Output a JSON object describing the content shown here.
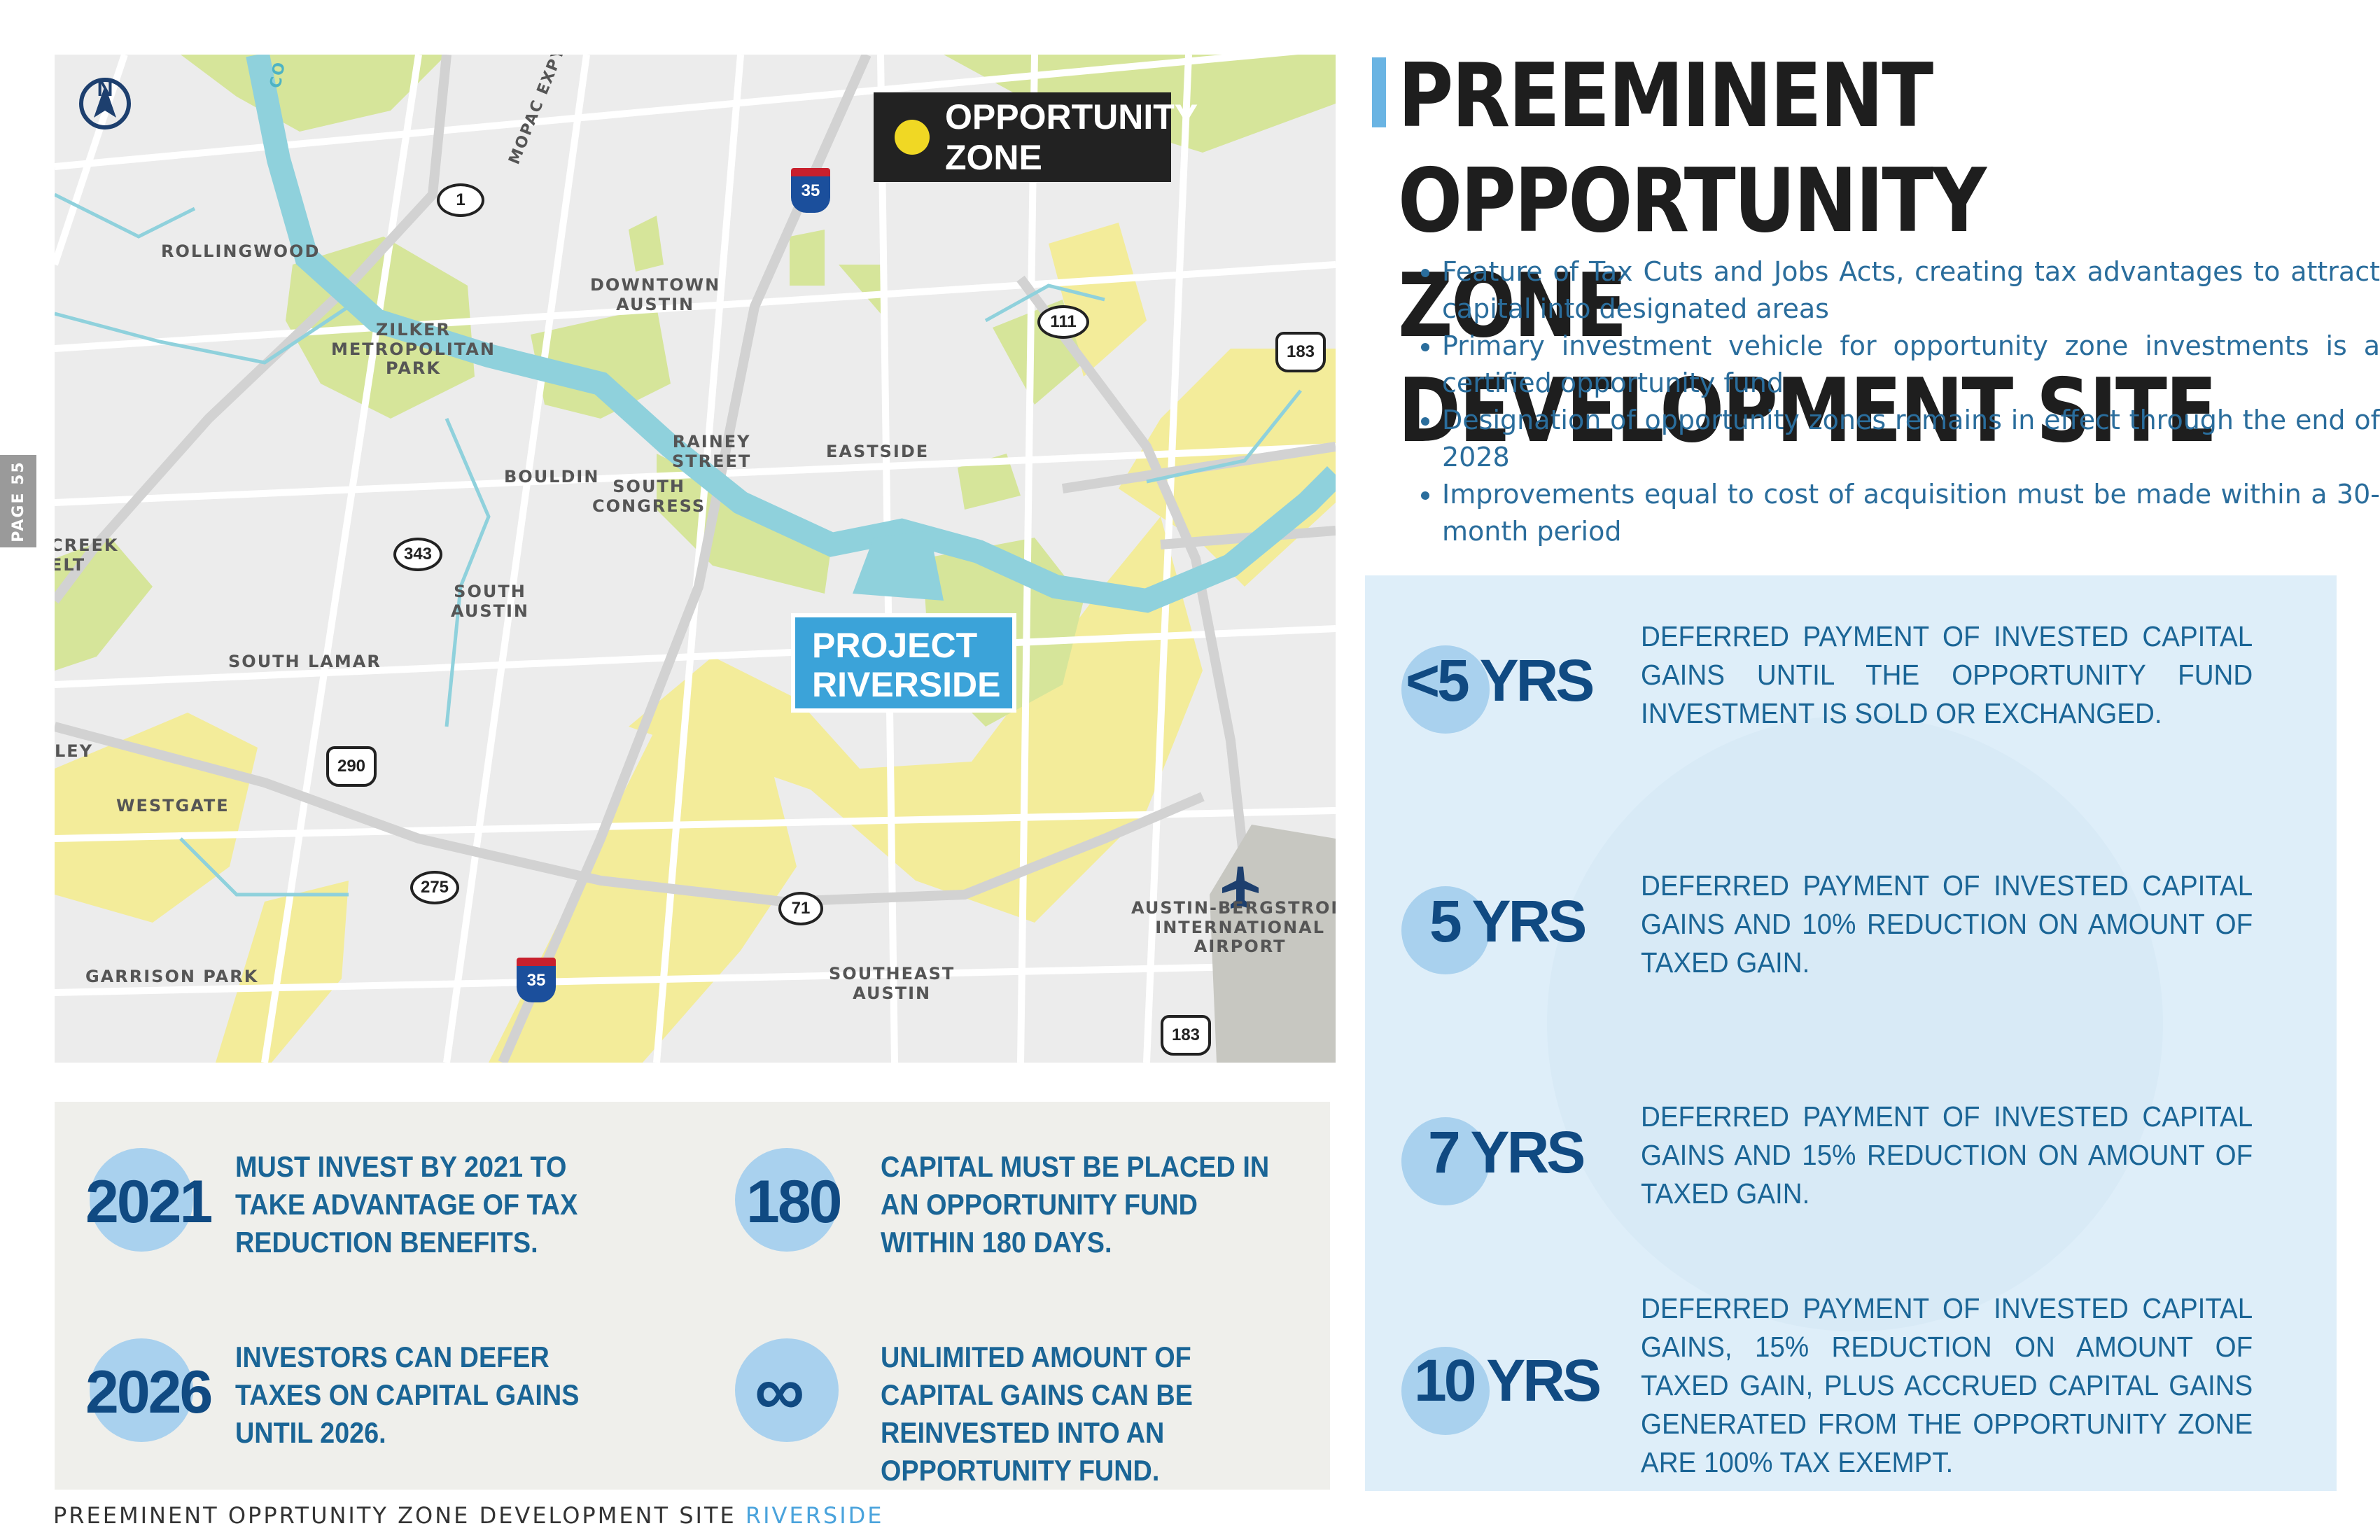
{
  "page_tab": "PAGE 55",
  "title": "PREEMINENT OPPORTUNITY ZONE DEVELOPMENT SITE",
  "bullets": [
    "Feature of Tax Cuts and Jobs Acts, creating tax advantages to attract capital into designated areas",
    "Primary investment vehicle for opportunity zone investments is a certified opportunity fund",
    "Designation of opportunity zones remains in effect through the end of 2028",
    "Improvements equal to cost of acquisition must be made within a 30-month period"
  ],
  "map": {
    "compass_label": "N",
    "legend_label": "OPPORTUNITY ZONE",
    "legend_color": "#f0d824",
    "project_label_line1": "PROJECT",
    "project_label_line2": "RIVERSIDE",
    "places": {
      "rollingwood": "ROLLINGWOOD",
      "zilker": "ZILKER\nMETROPOLITAN\nPARK",
      "downtown": "DOWNTOWN\nAUSTIN",
      "rainey": "RAINEY\nSTREET",
      "eastside": "EASTSIDE",
      "bouldin": "BOULDIN",
      "south_congress": "SOUTH\nCONGRESS",
      "south_austin": "SOUTH\nAUSTIN",
      "south_lamar": "SOUTH LAMAR",
      "westgate": "WESTGATE",
      "garrison_park": "GARRISON PARK",
      "southeast_austin": "SOUTHEAST\nAUSTIN",
      "airport": "AUSTIN-BERGSTROM\nINTERNATIONAL\nAIRPORT",
      "creek_belt": "CREEK\nELT",
      "ley": "LEY",
      "mopac": "MOPAC EXPY",
      "co": "CO"
    },
    "highways": {
      "i35_top": "35",
      "i35_bottom": "35",
      "loop1": "1",
      "r111": "111",
      "us183_top": "183",
      "us183_bottom": "183",
      "r343": "343",
      "us290": "290",
      "r275": "275",
      "r71": "71"
    }
  },
  "benefits": [
    {
      "term": "<5 YRS",
      "text": "Deferred payment of invested capital gains until the opportunity fund investment is sold or exchanged."
    },
    {
      "term": "5 YRS",
      "text": "Deferred payment of invested capital gains and 10% reduction on amount of taxed gain."
    },
    {
      "term": "7 YRS",
      "text": "Deferred payment of invested capital gains and 15% reduction on amount of taxed gain."
    },
    {
      "term": "10 YRS",
      "text": "Deferred payment of invested capital gains, 15% reduction on amount of taxed gain, plus accrued capital gains generated from the opportunity zone are 100% tax exempt."
    }
  ],
  "stats": [
    {
      "value": "2021",
      "text": "Must invest by 2021 to take advantage of tax reduction benefits."
    },
    {
      "value": "180",
      "text": "Capital must be placed in an opportunity fund within 180 days."
    },
    {
      "value": "2026",
      "text": "Investors can defer taxes on capital gains until 2026."
    },
    {
      "value": "∞",
      "text": "Unlimited amount of capital gains can be reinvested into an opportunity fund."
    }
  ],
  "footer": {
    "text": "PREEMINENT OPPRTUNITY ZONE DEVELOPMENT SITE",
    "accent": "RIVERSIDE"
  },
  "colors": {
    "accent_blue": "#3ba3d9",
    "dark_blue": "#104a82",
    "text_blue": "#1a6596",
    "zone_yellow": "#f3ec9a",
    "park_green": "#d6e59a",
    "water": "#8fd1dc"
  }
}
